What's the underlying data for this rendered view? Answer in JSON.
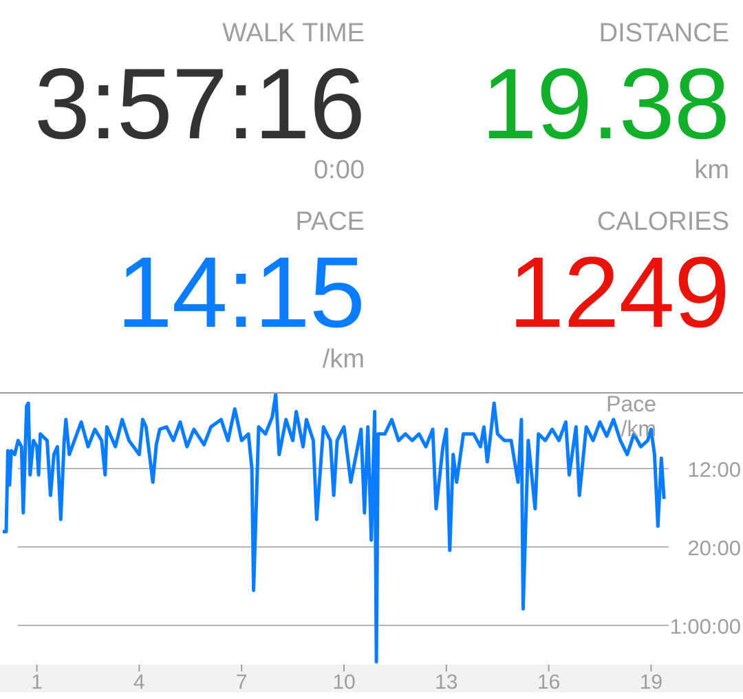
{
  "stats": {
    "walk_time": {
      "label": "WALK TIME",
      "value": "3:57:16",
      "sub": "0:00",
      "color": "#333333"
    },
    "distance": {
      "label": "DISTANCE",
      "value": "19.38",
      "sub": "km",
      "color": "#12b02a"
    },
    "pace": {
      "label": "PACE",
      "value": "14:15",
      "sub": "/km",
      "color": "#0a7cff"
    },
    "calories": {
      "label": "CALORIES",
      "value": "1249",
      "color": "#e8140c"
    }
  },
  "chart_data": {
    "type": "line",
    "title": "",
    "ylabel": "Pace\n/km",
    "ylabel_lines": [
      "Pace",
      "/km"
    ],
    "xlabel": "",
    "y_scale": "reciprocal (speed-linear), faster at top",
    "y_ticks": [
      {
        "label": "12:00",
        "pace_min": 12
      },
      {
        "label": "20:00",
        "pace_min": 20
      },
      {
        "label": "1:00:00",
        "pace_min": 60
      }
    ],
    "x_ticks": [
      "1",
      "4",
      "7",
      "10",
      "13",
      "16",
      "19"
    ],
    "xlim": [
      0,
      19.4
    ],
    "grid": true,
    "line_color": "#0a7cff",
    "series": [
      {
        "unit": "min/km",
        "points": [
          [
            0.0,
            17.7
          ],
          [
            0.1,
            17.7
          ],
          [
            0.15,
            11.0
          ],
          [
            0.2,
            13.1
          ],
          [
            0.25,
            11.0
          ],
          [
            0.35,
            11.2
          ],
          [
            0.45,
            10.5
          ],
          [
            0.55,
            10.8
          ],
          [
            0.6,
            15.5
          ],
          [
            0.7,
            9.1
          ],
          [
            0.75,
            9.0
          ],
          [
            0.8,
            12.4
          ],
          [
            0.9,
            10.5
          ],
          [
            1.0,
            10.8
          ],
          [
            1.05,
            12.4
          ],
          [
            1.1,
            10.2
          ],
          [
            1.3,
            10.5
          ],
          [
            1.4,
            13.9
          ],
          [
            1.5,
            11.2
          ],
          [
            1.6,
            10.8
          ],
          [
            1.7,
            16.2
          ],
          [
            1.8,
            10.5
          ],
          [
            1.85,
            9.6
          ],
          [
            1.95,
            11.2
          ],
          [
            2.1,
            10.5
          ],
          [
            2.3,
            9.7
          ],
          [
            2.5,
            10.8
          ],
          [
            2.7,
            10.0
          ],
          [
            2.9,
            10.5
          ],
          [
            3.0,
            12.4
          ],
          [
            3.05,
            9.9
          ],
          [
            3.3,
            10.8
          ],
          [
            3.5,
            9.6
          ],
          [
            3.7,
            10.5
          ],
          [
            4.0,
            11.2
          ],
          [
            4.1,
            9.6
          ],
          [
            4.2,
            9.9
          ],
          [
            4.4,
            12.9
          ],
          [
            4.5,
            10.7
          ],
          [
            4.6,
            10.0
          ],
          [
            4.8,
            9.9
          ],
          [
            5.0,
            10.5
          ],
          [
            5.2,
            9.7
          ],
          [
            5.4,
            10.8
          ],
          [
            5.6,
            10.0
          ],
          [
            5.9,
            10.7
          ],
          [
            6.1,
            9.9
          ],
          [
            6.4,
            9.6
          ],
          [
            6.6,
            10.5
          ],
          [
            6.8,
            9.2
          ],
          [
            7.0,
            10.5
          ],
          [
            7.2,
            10.2
          ],
          [
            7.3,
            12.0
          ],
          [
            7.35,
            31.7
          ],
          [
            7.45,
            12.9
          ],
          [
            7.5,
            9.9
          ],
          [
            7.7,
            10.2
          ],
          [
            7.9,
            9.5
          ],
          [
            8.0,
            8.7
          ],
          [
            8.1,
            11.2
          ],
          [
            8.3,
            9.6
          ],
          [
            8.5,
            10.5
          ],
          [
            8.6,
            9.3
          ],
          [
            8.8,
            10.8
          ],
          [
            8.9,
            9.6
          ],
          [
            9.1,
            10.5
          ],
          [
            9.2,
            16.2
          ],
          [
            9.4,
            9.9
          ],
          [
            9.6,
            10.5
          ],
          [
            9.7,
            13.9
          ],
          [
            9.8,
            10.5
          ],
          [
            10.0,
            9.9
          ],
          [
            10.2,
            12.9
          ],
          [
            10.5,
            10.0
          ],
          [
            10.6,
            15.5
          ],
          [
            10.7,
            9.9
          ],
          [
            10.8,
            18.9
          ],
          [
            10.9,
            9.3
          ],
          [
            10.95,
            855
          ],
          [
            11.0,
            10.2
          ],
          [
            11.2,
            10.2
          ],
          [
            11.4,
            9.6
          ],
          [
            11.6,
            10.5
          ],
          [
            11.8,
            10.2
          ],
          [
            12.0,
            10.5
          ],
          [
            12.2,
            10.2
          ],
          [
            12.4,
            10.8
          ],
          [
            12.6,
            10.0
          ],
          [
            12.7,
            15.1
          ],
          [
            12.9,
            10.8
          ],
          [
            13.0,
            10.0
          ],
          [
            13.1,
            20.6
          ],
          [
            13.2,
            11.2
          ],
          [
            13.3,
            12.9
          ],
          [
            13.5,
            10.2
          ],
          [
            13.8,
            10.2
          ],
          [
            14.0,
            10.8
          ],
          [
            14.1,
            9.9
          ],
          [
            14.2,
            11.6
          ],
          [
            14.3,
            10.2
          ],
          [
            14.4,
            9.0
          ],
          [
            14.5,
            10.2
          ],
          [
            14.7,
            10.5
          ],
          [
            14.9,
            10.5
          ],
          [
            15.1,
            12.9
          ],
          [
            15.2,
            9.6
          ],
          [
            15.25,
            42.2
          ],
          [
            15.4,
            10.5
          ],
          [
            15.6,
            15.1
          ],
          [
            15.7,
            10.2
          ],
          [
            15.9,
            10.5
          ],
          [
            16.1,
            10.0
          ],
          [
            16.3,
            10.5
          ],
          [
            16.5,
            9.7
          ],
          [
            16.6,
            12.4
          ],
          [
            16.8,
            9.9
          ],
          [
            16.9,
            13.9
          ],
          [
            17.1,
            9.9
          ],
          [
            17.3,
            10.5
          ],
          [
            17.5,
            9.7
          ],
          [
            17.7,
            10.3
          ],
          [
            17.9,
            9.6
          ],
          [
            18.1,
            10.5
          ],
          [
            18.3,
            11.2
          ],
          [
            18.5,
            10.2
          ],
          [
            18.7,
            10.8
          ],
          [
            18.9,
            10.5
          ],
          [
            19.0,
            10.0
          ],
          [
            19.1,
            11.2
          ],
          [
            19.2,
            17.0
          ],
          [
            19.3,
            11.4
          ],
          [
            19.38,
            14.2
          ]
        ]
      }
    ]
  }
}
